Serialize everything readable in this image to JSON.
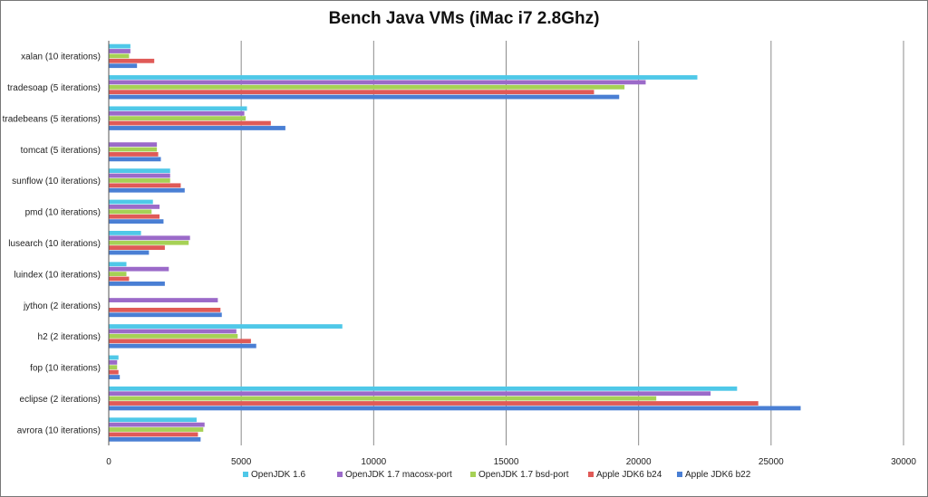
{
  "chart_data": {
    "type": "bar",
    "orientation": "horizontal",
    "title": "Bench Java VMs (iMac i7 2.8Ghz)",
    "xlabel": "",
    "ylabel": "",
    "xlim": [
      0,
      30000
    ],
    "x_ticks": [
      "0",
      "5000",
      "10000",
      "15000",
      "20000",
      "25000",
      "30000"
    ],
    "grid": "vertical major gridlines",
    "legend_position": "bottom",
    "categories": [
      "xalan (10 iterations)",
      "tradesoap (5 iterations)",
      "tradebeans (5 iterations)",
      "tomcat (5 iterations)",
      "sunflow (10 iterations)",
      "pmd (10 iterations)",
      "lusearch (10 iterations)",
      "luindex (10 iterations)",
      "jython (2 iterations)",
      "h2 (2 iterations)",
      "fop (10 iterations)",
      "eclipse (2 iterations)",
      "avrora (10 iterations)"
    ],
    "series": [
      {
        "name": "OpenJDK 1.6",
        "color": "#4fc8e8",
        "values": [
          800,
          22200,
          5200,
          0,
          2300,
          1650,
          1200,
          650,
          0,
          8800,
          350,
          23700,
          3300
        ]
      },
      {
        "name": "OpenJDK 1.7 macosx-port",
        "color": "#9b6ac9",
        "values": [
          800,
          20250,
          5100,
          1800,
          2300,
          1900,
          3050,
          2250,
          4100,
          4800,
          300,
          22700,
          3600
        ]
      },
      {
        "name": "OpenJDK 1.7 bsd-port",
        "color": "#a6d155",
        "values": [
          750,
          19450,
          5150,
          1800,
          2300,
          1600,
          3000,
          650,
          0,
          4850,
          300,
          20650,
          3550
        ]
      },
      {
        "name": "Apple JDK6 b24",
        "color": "#e05a57",
        "values": [
          1700,
          18300,
          6100,
          1850,
          2700,
          1900,
          2100,
          750,
          4200,
          5350,
          350,
          24500,
          3350
        ]
      },
      {
        "name": "Apple JDK6 b22",
        "color": "#4a7fd4",
        "values": [
          1050,
          19250,
          6650,
          1950,
          2850,
          2050,
          1500,
          2100,
          4250,
          5550,
          400,
          26100,
          3450
        ]
      }
    ]
  }
}
